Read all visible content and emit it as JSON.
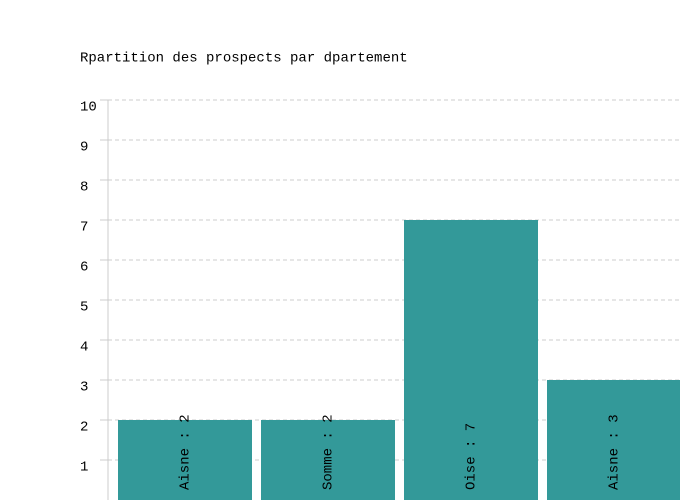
{
  "chart_data": {
    "type": "bar",
    "title": "Rpartition des prospects par dpartement",
    "values": [
      2,
      2,
      7,
      3
    ],
    "value_labels": [
      "Aisne : 2",
      "Somme : 2",
      "Oise : 7",
      "Aisne : 3"
    ],
    "color": "#339999",
    "ylim": [
      0,
      10
    ],
    "yticks": [
      1,
      2,
      3,
      4,
      5,
      6,
      7,
      8,
      9,
      10
    ],
    "grid": true
  }
}
